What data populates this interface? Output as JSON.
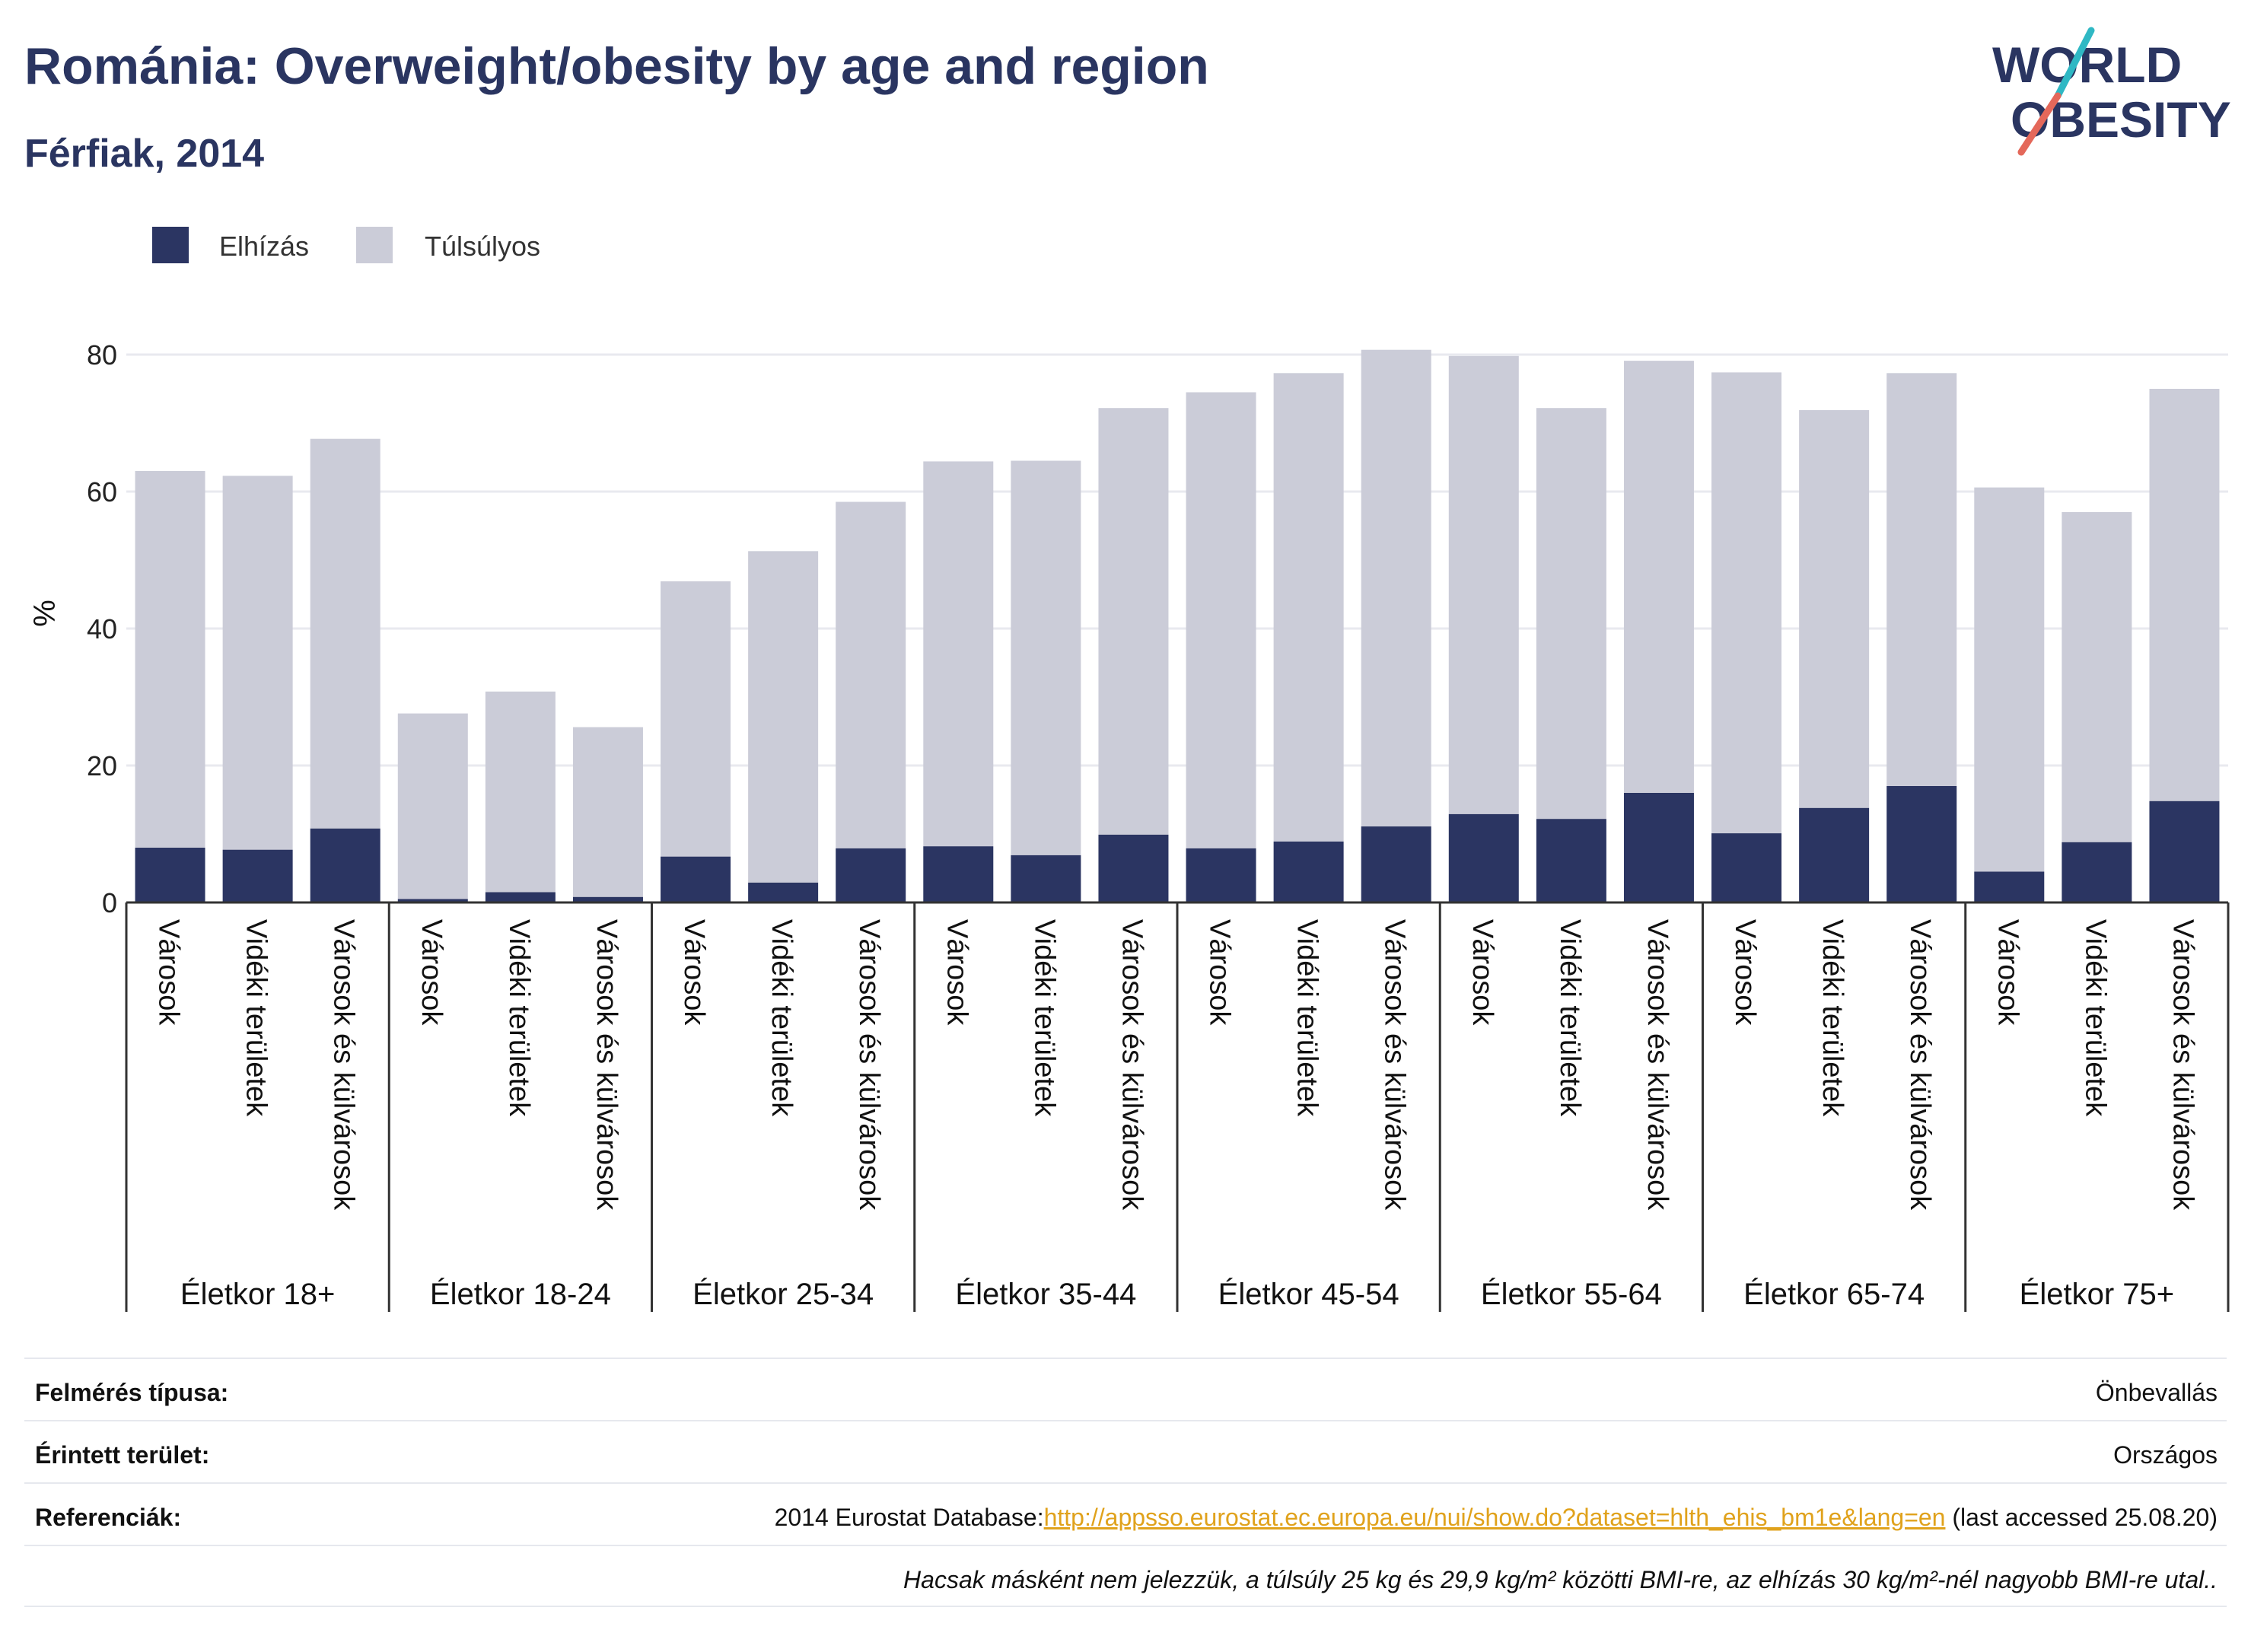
{
  "header": {
    "title": "Románia: Overweight/obesity by age and region",
    "subtitle": "Férfiak, 2014",
    "logo_line1": "WORLD",
    "logo_line2": "OBESITY"
  },
  "colors": {
    "obesity": "#2b3562",
    "overweight": "#cbccd8",
    "accent_teal": "#2fb8c4",
    "accent_red": "#e4685a",
    "link": "#e0a21c"
  },
  "chart_data": {
    "type": "bar",
    "stacked": true,
    "ylabel": "%",
    "ylim": [
      0,
      85
    ],
    "yticks": [
      0,
      20,
      40,
      60,
      80
    ],
    "grid": true,
    "legend": {
      "placement": "top-left",
      "entries": [
        "Elhízás",
        "Túlsúlyos"
      ]
    },
    "regions": [
      "Városok",
      "Vidéki területek",
      "Városok és külvárosok"
    ],
    "groups": [
      "Életkor 18+",
      "Életkor 18-24",
      "Életkor 25-34",
      "Életkor 35-44",
      "Életkor 45-54",
      "Életkor 55-64",
      "Életkor 65-74",
      "Életkor 75+"
    ],
    "series": [
      {
        "name": "Elhízás",
        "values": [
          [
            8.0,
            7.7,
            10.8
          ],
          [
            0.5,
            1.5,
            0.8
          ],
          [
            6.7,
            2.9,
            7.9
          ],
          [
            8.2,
            6.9,
            9.9
          ],
          [
            7.9,
            8.9,
            11.1
          ],
          [
            12.9,
            12.2,
            16.0
          ],
          [
            10.1,
            13.8,
            17.0
          ],
          [
            4.5,
            8.8,
            14.8
          ]
        ]
      },
      {
        "name": "Túlsúlyos",
        "values": [
          [
            55.0,
            54.6,
            56.9
          ],
          [
            27.1,
            29.3,
            24.8
          ],
          [
            40.2,
            48.4,
            50.6
          ],
          [
            56.2,
            57.6,
            62.3
          ],
          [
            66.6,
            68.4,
            69.6
          ],
          [
            66.9,
            60.0,
            63.1
          ],
          [
            67.3,
            58.1,
            60.3
          ],
          [
            56.1,
            48.2,
            60.2
          ]
        ]
      }
    ]
  },
  "footer": {
    "rows": [
      {
        "key": "Felmérés típusa:",
        "value": "Önbevallás"
      },
      {
        "key": "Érintett terület:",
        "value": "Országos"
      }
    ],
    "ref_key": "Referenciák:",
    "ref_prefix": "2014 Eurostat Database:",
    "ref_link": "http://appsso.eurostat.ec.europa.eu/nui/show.do?dataset=hlth_ehis_bm1e&lang=en",
    "ref_suffix": " (last accessed 25.08.20)",
    "note": "Hacsak másként nem jelezzük, a túlsúly 25 kg és 29,9 kg/m² közötti BMI-re, az elhízás 30 kg/m²-nél nagyobb BMI-re utal.."
  }
}
